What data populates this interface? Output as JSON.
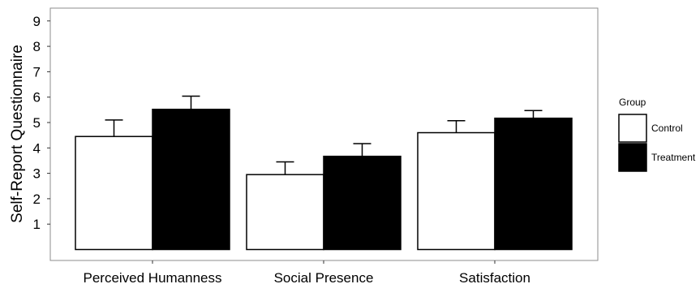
{
  "chart_data": {
    "type": "bar",
    "categories": [
      "Perceived Humanness",
      "Social Presence",
      "Satisfaction"
    ],
    "series": [
      {
        "name": "Control",
        "values": [
          4.45,
          2.95,
          4.6
        ],
        "errors": [
          0.65,
          0.5,
          0.47
        ],
        "color": "#ffffff"
      },
      {
        "name": "Treatment",
        "values": [
          5.52,
          3.67,
          5.17
        ],
        "errors": [
          0.52,
          0.5,
          0.3
        ],
        "color": "#000000"
      }
    ],
    "title": "",
    "xlabel": "",
    "ylabel": "Self-Report Questionnaire",
    "ylim": [
      0,
      9
    ],
    "yticks": [
      "1",
      "2",
      "3",
      "4",
      "5",
      "6",
      "7",
      "8",
      "9"
    ],
    "grid": false,
    "legend": {
      "title": "Group",
      "position": "right"
    }
  }
}
